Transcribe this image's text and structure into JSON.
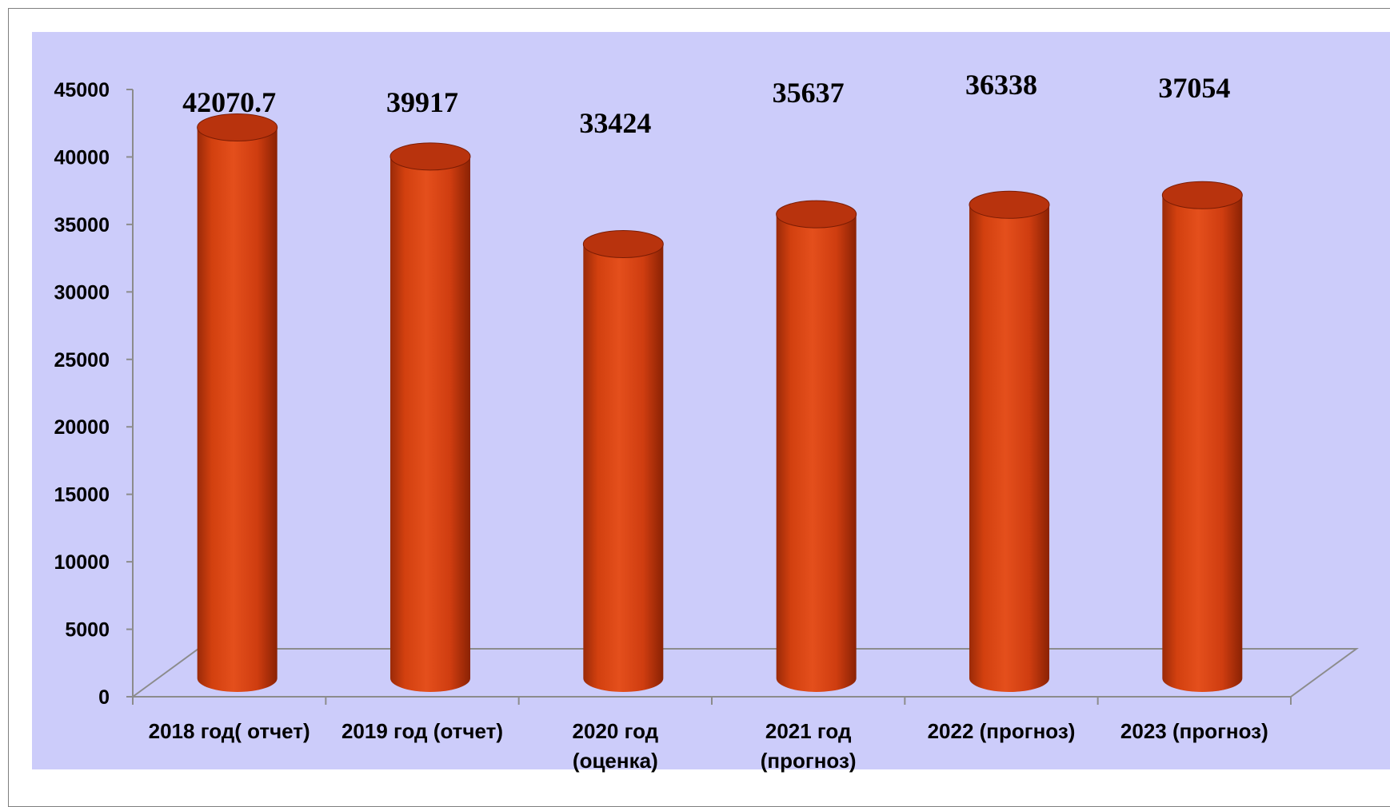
{
  "chart_data": {
    "type": "bar",
    "style": "3d-cylinder",
    "categories": [
      [
        "2018 год( отчет)"
      ],
      [
        "2019 год (отчет)"
      ],
      [
        "2020 год",
        "(оценка)"
      ],
      [
        "2021 год",
        "(прогноз)"
      ],
      [
        "2022 (прогноз)"
      ],
      [
        "2023 (прогноз)"
      ]
    ],
    "values": [
      42070.7,
      39917,
      33424,
      35637,
      36338,
      37054
    ],
    "data_labels": [
      "42070.7",
      "39917",
      "33424",
      "35637",
      "36338",
      "37054"
    ],
    "ylim": [
      0,
      45000
    ],
    "yticks": [
      0,
      5000,
      10000,
      15000,
      20000,
      25000,
      30000,
      35000,
      40000,
      45000
    ],
    "grid": false,
    "legend": "none",
    "colors": {
      "plot_background": "#ccccfa",
      "bar": "#e04a1a",
      "bar_dark": "#8e2205",
      "bar_top": "#b8330d",
      "axis": "#8c8c8c"
    }
  }
}
